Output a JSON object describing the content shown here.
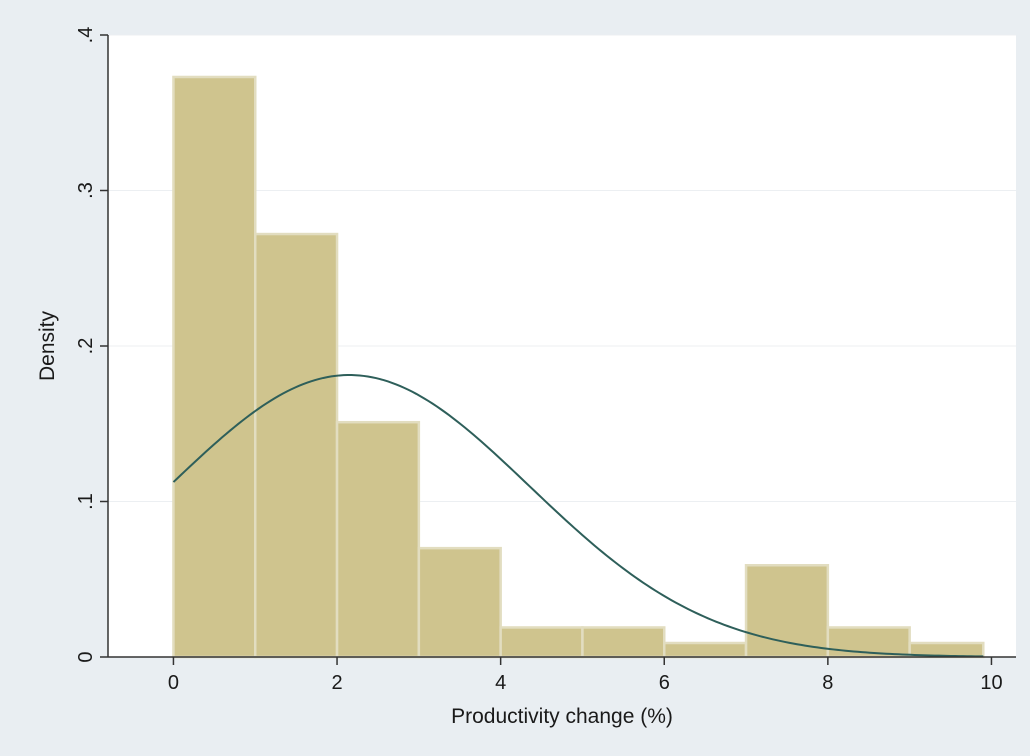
{
  "chart_data": {
    "type": "bar",
    "subtype": "histogram",
    "xlabel": "Productivity change (%)",
    "ylabel": "Density",
    "xlim": [
      -0.8,
      10.3
    ],
    "ylim": [
      0,
      0.4
    ],
    "xticks": [
      0,
      2,
      4,
      6,
      8,
      10
    ],
    "xtick_labels": [
      "0",
      "2",
      "4",
      "6",
      "8",
      "10"
    ],
    "yticks": [
      0,
      0.1,
      0.2,
      0.3,
      0.4
    ],
    "ytick_labels": [
      "0",
      ".1",
      ".2",
      ".3",
      ".4"
    ],
    "grid": "horizontal",
    "bins": [
      {
        "start": 0,
        "end": 1,
        "density": 0.373
      },
      {
        "start": 1,
        "end": 2,
        "density": 0.272
      },
      {
        "start": 2,
        "end": 3,
        "density": 0.151
      },
      {
        "start": 3,
        "end": 4,
        "density": 0.07
      },
      {
        "start": 4,
        "end": 5,
        "density": 0.019
      },
      {
        "start": 5,
        "end": 6,
        "density": 0.019
      },
      {
        "start": 6,
        "end": 7,
        "density": 0.009
      },
      {
        "start": 7,
        "end": 8,
        "density": 0.059
      },
      {
        "start": 8,
        "end": 9,
        "density": 0.019
      },
      {
        "start": 9,
        "end": 9.9,
        "density": 0.009
      }
    ],
    "normal_curve": {
      "mean": 2.15,
      "sd": 2.2,
      "x_range": [
        0,
        9.9
      ]
    },
    "colors": {
      "bar_fill": "#cfc48e",
      "bar_edge": "#e2ddc0",
      "curve": "#2e5f5a",
      "plot_background": "#ffffff",
      "page_background": "#e9eef2",
      "grid": "#eceff2",
      "axis": "#333333"
    }
  }
}
